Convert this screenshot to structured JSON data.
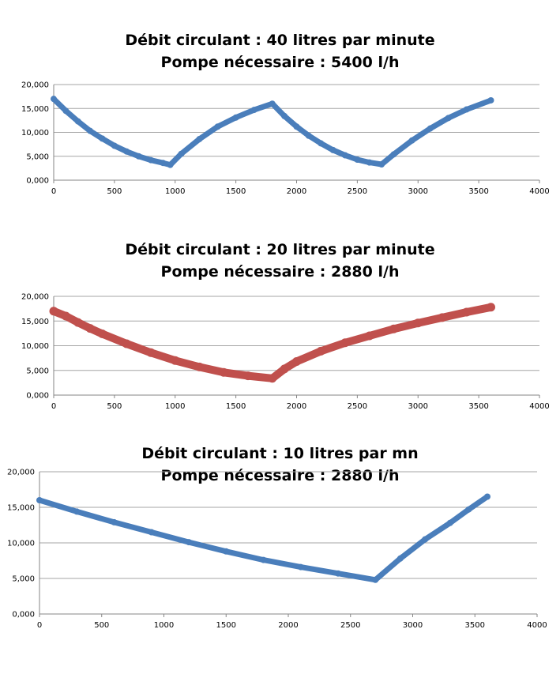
{
  "chart_data": [
    {
      "type": "line",
      "title_line1": "Débit circulant : 40 litres par minute",
      "title_line2": "Pompe nécessaire : 5400 l/h",
      "xlim": [
        0,
        4000
      ],
      "ylim": [
        0,
        20000
      ],
      "x_ticks": [
        "0",
        "500",
        "1000",
        "1500",
        "2000",
        "2500",
        "3000",
        "3500",
        "4000"
      ],
      "y_ticks": [
        "0,000",
        "5,000",
        "10,000",
        "15,000",
        "20,000"
      ],
      "grid": true,
      "color": "#4a7ebb",
      "series": [
        {
          "x": [
            0,
            100,
            200,
            300,
            400,
            500,
            600,
            700,
            800,
            900,
            960,
            1050,
            1200,
            1350,
            1500,
            1650,
            1800,
            1900,
            2000,
            2100,
            2200,
            2300,
            2400,
            2500,
            2600,
            2700,
            2800,
            2950,
            3100,
            3250,
            3400,
            3600
          ],
          "y": [
            17000,
            14500,
            12300,
            10300,
            8700,
            7200,
            6000,
            5000,
            4200,
            3600,
            3200,
            5500,
            8600,
            11200,
            13100,
            14700,
            16000,
            13400,
            11200,
            9300,
            7700,
            6300,
            5200,
            4300,
            3700,
            3300,
            5400,
            8300,
            10800,
            13000,
            14800,
            16700
          ]
        }
      ]
    },
    {
      "type": "line",
      "title_line1": "Débit circulant : 20 litres par minute",
      "title_line2": "Pompe nécessaire : 2880 l/h",
      "xlim": [
        0,
        4000
      ],
      "ylim": [
        0,
        20000
      ],
      "x_ticks": [
        "0",
        "500",
        "1000",
        "1500",
        "2000",
        "2500",
        "3000",
        "3500",
        "4000"
      ],
      "y_ticks": [
        "0,000",
        "5,000",
        "10,000",
        "15,000",
        "20,000"
      ],
      "grid": true,
      "color": "#c0504d",
      "series": [
        {
          "x": [
            0,
            100,
            200,
            300,
            400,
            600,
            800,
            1000,
            1200,
            1400,
            1600,
            1800,
            1900,
            2000,
            2200,
            2400,
            2600,
            2800,
            3000,
            3200,
            3400,
            3600
          ],
          "y": [
            17000,
            16000,
            14700,
            13500,
            12400,
            10400,
            8600,
            7000,
            5700,
            4600,
            3900,
            3400,
            5300,
            6800,
            8900,
            10600,
            12000,
            13400,
            14600,
            15700,
            16800,
            17800
          ]
        }
      ]
    },
    {
      "type": "line",
      "title_line1": "Débit circulant  : 10 litres par mn",
      "title_line2": "Pompe nécessaire : 2880 l/h",
      "xlim": [
        0,
        4000
      ],
      "ylim": [
        0,
        20000
      ],
      "x_ticks": [
        "0",
        "500",
        "1000",
        "1500",
        "2000",
        "2500",
        "3000",
        "3500",
        "4000"
      ],
      "y_ticks": [
        "0,000",
        "5,000",
        "10,000",
        "15,000",
        "20,000"
      ],
      "grid": true,
      "color": "#4a7ebb",
      "series": [
        {
          "x": [
            0,
            300,
            600,
            900,
            1200,
            1500,
            1800,
            2100,
            2400,
            2700,
            2900,
            3100,
            3300,
            3450,
            3600
          ],
          "y": [
            16000,
            14400,
            12900,
            11500,
            10100,
            8800,
            7600,
            6600,
            5700,
            4800,
            7800,
            10500,
            12800,
            14700,
            16500
          ]
        }
      ]
    }
  ]
}
